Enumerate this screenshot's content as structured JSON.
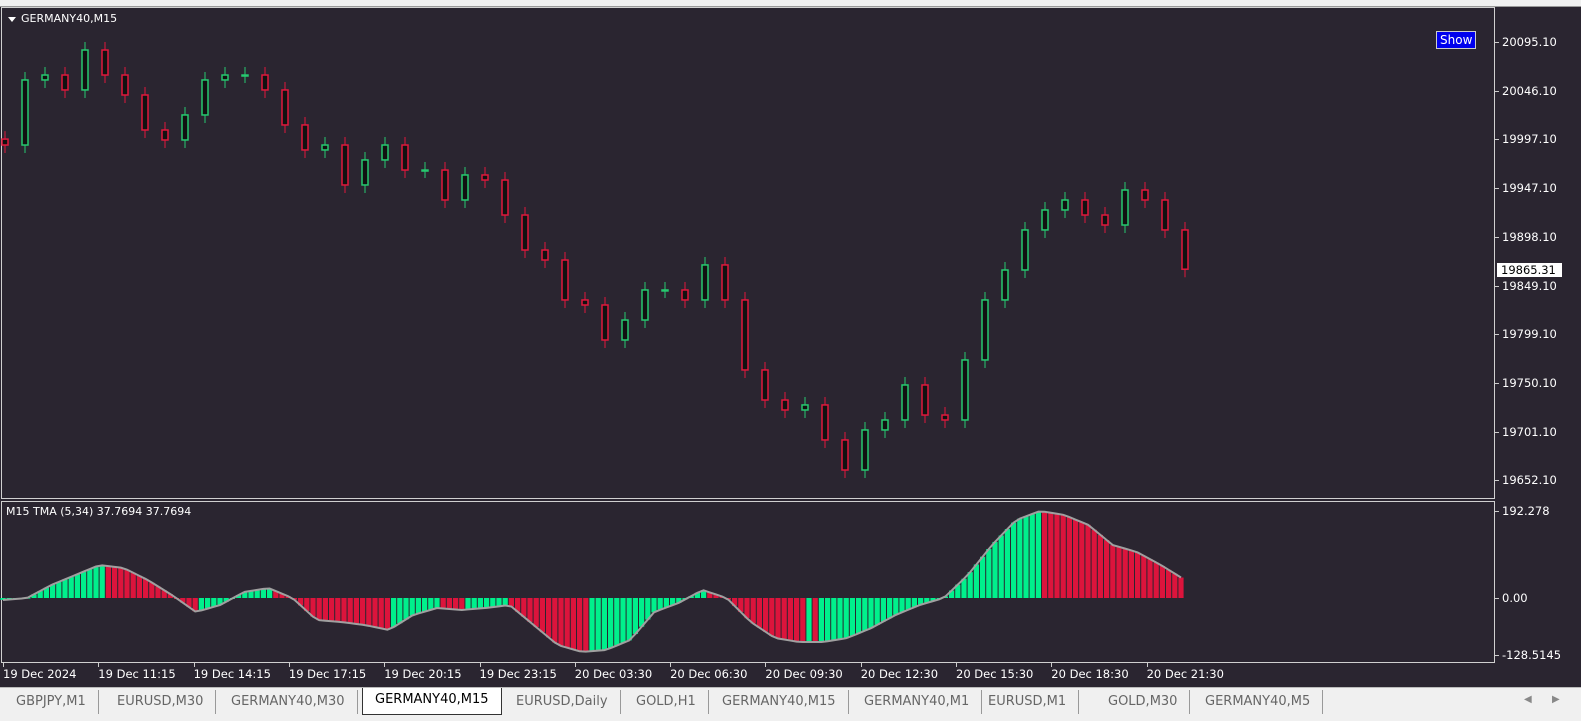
{
  "chart": {
    "title": "GERMANY40,M15",
    "show_button": "Show",
    "current_price": "19865.31",
    "price_labels": [
      "20095.10",
      "20046.10",
      "19997.10",
      "19947.10",
      "19898.10",
      "19849.10",
      "19799.10",
      "19750.10",
      "19701.10",
      "19652.10"
    ],
    "time_labels": [
      "19 Dec 2024",
      "19 Dec 11:15",
      "19 Dec 14:15",
      "19 Dec 17:15",
      "19 Dec 20:15",
      "19 Dec 23:15",
      "20 Dec 03:30",
      "20 Dec 06:30",
      "20 Dec 09:30",
      "20 Dec 12:30",
      "20 Dec 15:30",
      "20 Dec 18:30",
      "20 Dec 21:30"
    ]
  },
  "indicator": {
    "title": "M15 TMA (5,34) 37.7694 37.7694",
    "labels": [
      "192.278",
      "0.00",
      "-128.5145"
    ]
  },
  "colors": {
    "bull": "#26c96f",
    "bear": "#e0183c",
    "hist_up": "#00f08c",
    "hist_down": "#dc143c",
    "line": "#a0a0a0",
    "background": "#2a2530"
  },
  "chart_data": [
    {
      "type": "candlestick",
      "title": "GERMANY40,M15",
      "ylim": [
        19632,
        20130
      ],
      "closes": [
        19990.9,
        20056.7,
        20061.7,
        20046.6,
        20087.0,
        20061.7,
        20041.5,
        20006.1,
        19996.0,
        20021.3,
        20056.7,
        20061.7,
        20061.7,
        20046.6,
        20011.2,
        19985.9,
        19990.9,
        19950.5,
        19975.8,
        19990.9,
        19965.6,
        19965.6,
        19935.3,
        19960.6,
        19955.5,
        19920.1,
        19884.7,
        19874.6,
        19834.2,
        19829.1,
        19793.7,
        19813.9,
        19844.3,
        19844.3,
        19834.2,
        19869.6,
        19834.2,
        19763.4,
        19733.0,
        19722.9,
        19728.0,
        19692.6,
        19662.2,
        19702.7,
        19712.8,
        19748.2,
        19717.8,
        19712.8,
        19773.5,
        19834.2,
        19864.5,
        19905.0,
        19925.2,
        19935.3,
        19920.1,
        19910.0,
        19945.4,
        19935.3,
        19905.0,
        19865.3
      ]
    },
    {
      "type": "bar",
      "title": "M15 TMA (5,34)",
      "ylim": [
        -128.5145,
        192.278
      ],
      "values": [
        -4.4,
        0,
        28.7,
        50.8,
        72.9,
        66.3,
        39.8,
        6.6,
        -30.9,
        -15.5,
        13.3,
        22.1,
        0,
        -48.6,
        -53.0,
        -59.7,
        -70.7,
        -37.6,
        -22.1,
        -26.5,
        -22.1,
        -15.5,
        -59.7,
        -103.9,
        -119.3,
        -114.9,
        -92.8,
        -30.9,
        -11.0,
        17.7,
        0,
        -53.0,
        -88.4,
        -97.2,
        -97.2,
        -88.4,
        -66.3,
        -37.6,
        -15.5,
        0,
        50.8,
        117.1,
        172.4,
        192.3,
        183.4,
        161.3,
        117.1,
        101.7,
        72.9,
        39.8
      ]
    }
  ],
  "tabs": [
    {
      "label": "GBPJPY,M1",
      "active": false
    },
    {
      "label": "EURUSD,M30",
      "active": false
    },
    {
      "label": "GERMANY40,M30",
      "active": false
    },
    {
      "label": "GERMANY40,M15",
      "active": true
    },
    {
      "label": "EURUSD,Daily",
      "active": false
    },
    {
      "label": "GOLD,H1",
      "active": false
    },
    {
      "label": "GERMANY40,M15",
      "active": false
    },
    {
      "label": "GERMANY40,M1",
      "active": false
    },
    {
      "label": "EURUSD,M1",
      "active": false
    },
    {
      "label": "GOLD,M30",
      "active": false
    },
    {
      "label": "GERMANY40,M5",
      "active": false
    }
  ]
}
